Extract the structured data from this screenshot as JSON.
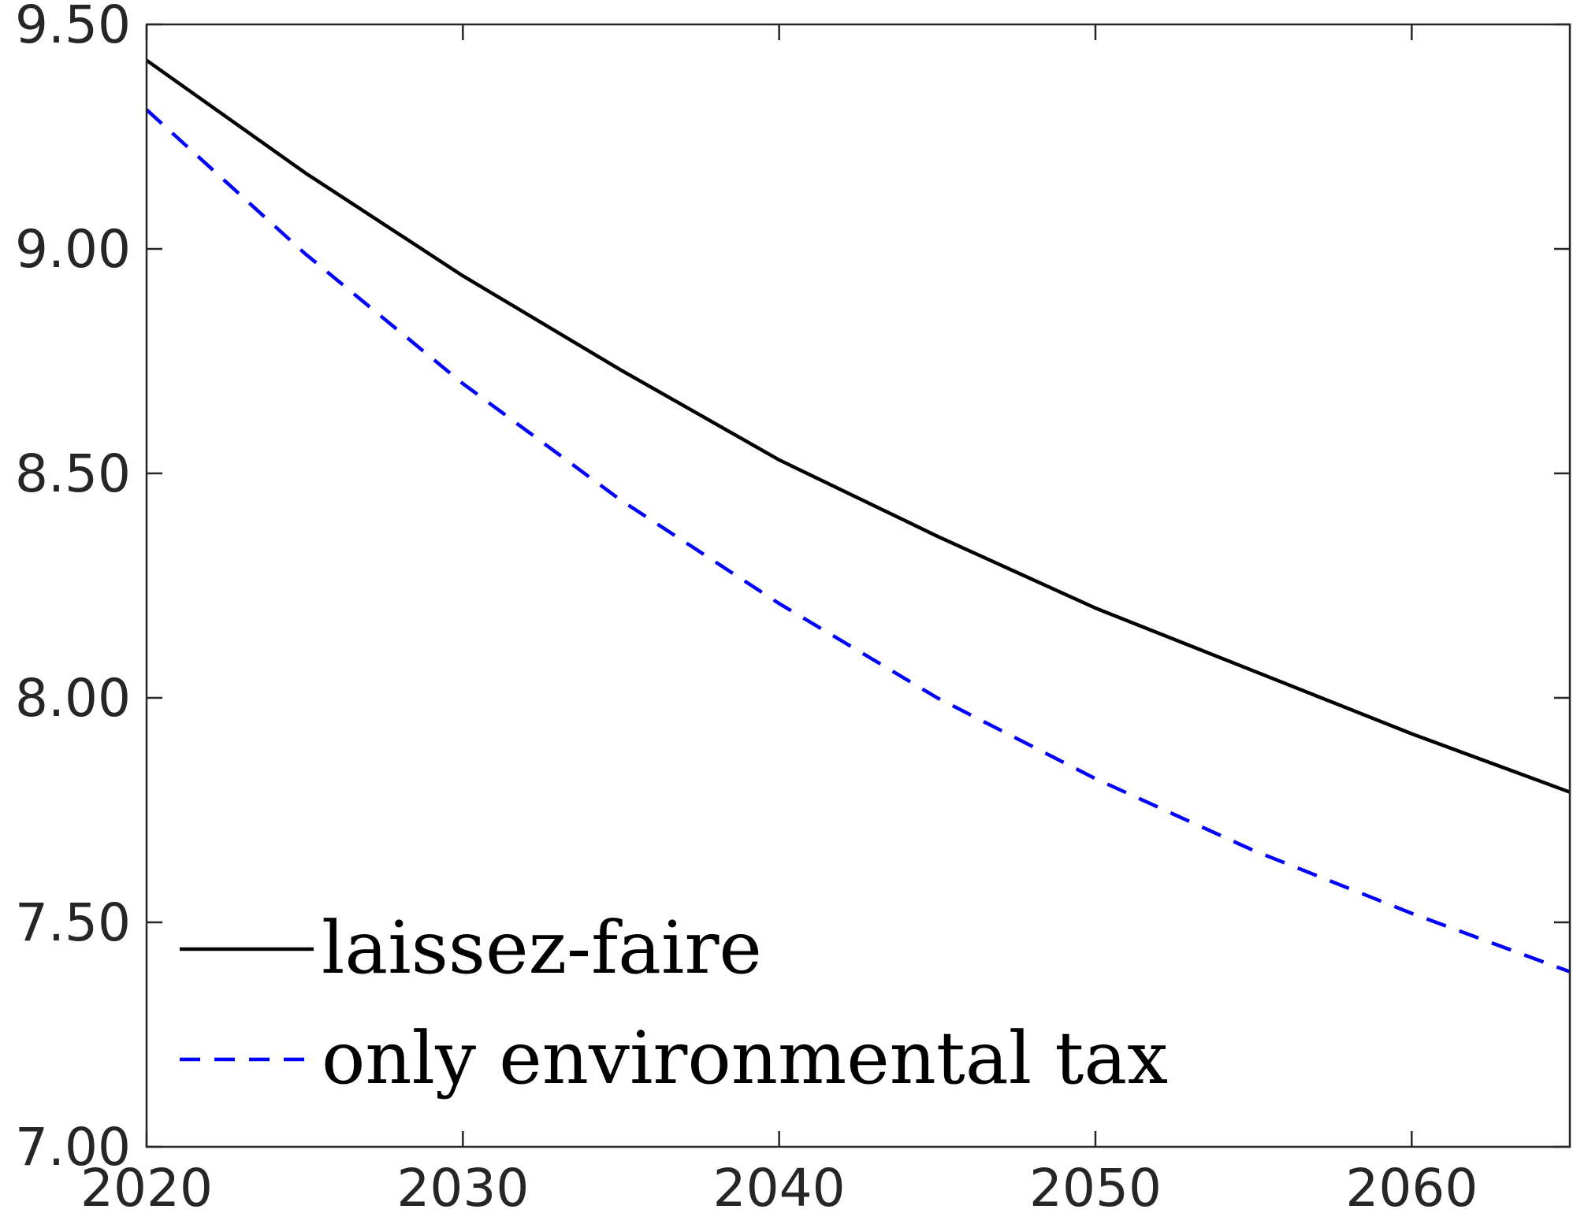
{
  "chart_data": {
    "type": "line",
    "title": "",
    "xlabel": "",
    "ylabel": "",
    "xlim": [
      2020,
      2065
    ],
    "ylim": [
      7.0,
      9.5
    ],
    "xticks": [
      "2020",
      "2030",
      "2040",
      "2050",
      "2060"
    ],
    "yticks": [
      "7.00",
      "7.50",
      "8.00",
      "8.50",
      "9.00",
      "9.50"
    ],
    "x": [
      2020,
      2025,
      2030,
      2035,
      2040,
      2045,
      2050,
      2055,
      2060,
      2065
    ],
    "series": [
      {
        "name": "laissez-faire",
        "style": "solid",
        "color": "#000000",
        "values": [
          9.42,
          9.17,
          8.94,
          8.73,
          8.53,
          8.36,
          8.2,
          8.06,
          7.92,
          7.79
        ]
      },
      {
        "name": "only environmental tax",
        "style": "dashed",
        "color": "#0000ff",
        "values": [
          9.31,
          8.99,
          8.7,
          8.44,
          8.21,
          8.0,
          7.82,
          7.66,
          7.52,
          7.39
        ]
      }
    ],
    "grid": false,
    "legend_position": "bottom-left"
  }
}
